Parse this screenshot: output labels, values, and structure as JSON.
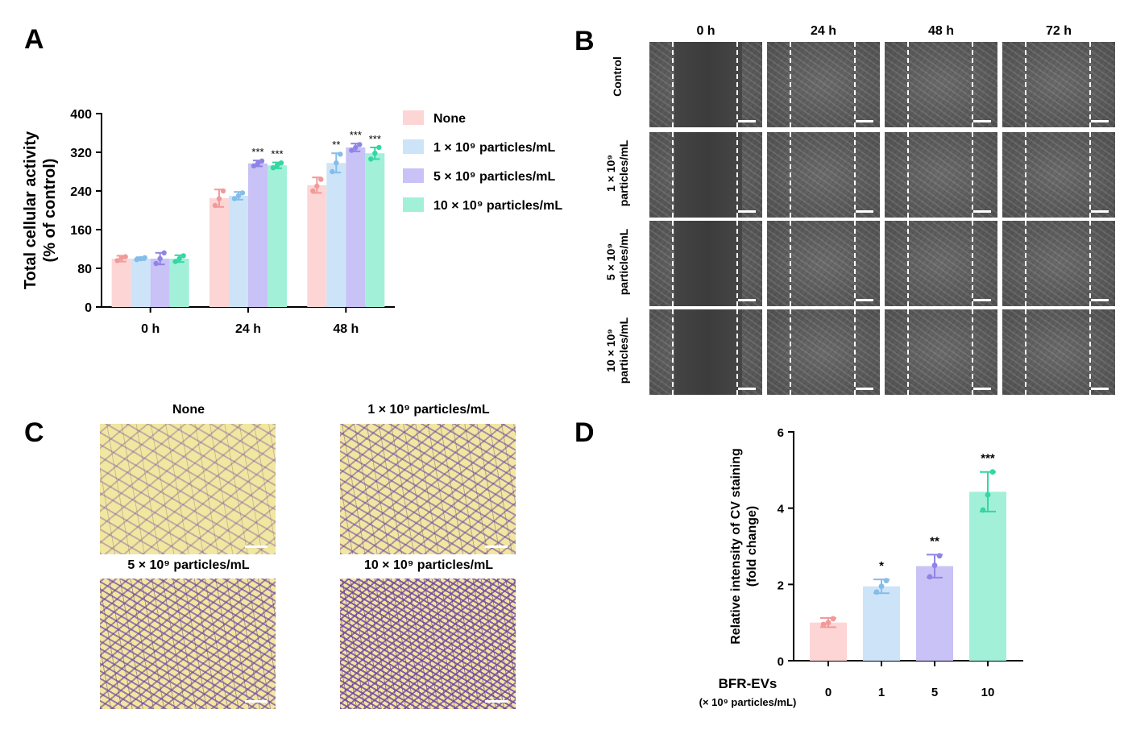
{
  "panels": {
    "a": "A",
    "b": "B",
    "c": "C",
    "d": "D"
  },
  "panel_b": {
    "columns": [
      "0 h",
      "24 h",
      "48 h",
      "72 h"
    ],
    "rows": [
      {
        "line1": "Control",
        "line2": ""
      },
      {
        "line1": "1 × 10⁹",
        "line2": "particles/mL"
      },
      {
        "line1": "5 × 10⁹",
        "line2": "particles/mL"
      },
      {
        "line1": "10 × 10⁹",
        "line2": "particles/mL"
      }
    ]
  },
  "panel_c": {
    "titles": [
      "None",
      "1 × 10⁹ particles/mL",
      "5 × 10⁹ particles/mL",
      "10 × 10⁹ particles/mL"
    ]
  },
  "chart_data": [
    {
      "type": "bar",
      "panel": "A",
      "ylabel_line1": "Total cellular activity",
      "ylabel_line2": "(% of control)",
      "categories": [
        "0 h",
        "24 h",
        "48 h"
      ],
      "ylim": [
        0,
        400
      ],
      "yticks": [
        0,
        80,
        160,
        240,
        320,
        400
      ],
      "legend_position": "right",
      "series": [
        {
          "name": "None",
          "color": "#fdd5d5",
          "point_color": "#f19a9a",
          "values": [
            100,
            225,
            252
          ],
          "errors": [
            6,
            18,
            16
          ],
          "points": [
            [
              96,
              102,
              104
            ],
            [
              210,
              224,
              240
            ],
            [
              240,
              250,
              264
            ]
          ],
          "sig": [
            "",
            "",
            ""
          ]
        },
        {
          "name": "1 × 10⁹ particles/mL",
          "color": "#cde4f8",
          "point_color": "#84bde8",
          "values": [
            100,
            230,
            298
          ],
          "errors": [
            3,
            8,
            20
          ],
          "points": [
            [
              98,
              100,
              102
            ],
            [
              224,
              230,
              236
            ],
            [
              280,
              298,
              316
            ]
          ],
          "sig": [
            "",
            "",
            "**"
          ]
        },
        {
          "name": "5 × 10⁹ particles/mL",
          "color": "#c8c2f6",
          "point_color": "#8f84e6",
          "values": [
            100,
            297,
            330
          ],
          "errors": [
            12,
            6,
            8
          ],
          "points": [
            [
              90,
              100,
              112
            ],
            [
              292,
              297,
              302
            ],
            [
              324,
              330,
              336
            ]
          ],
          "sig": [
            "",
            "***",
            "***"
          ]
        },
        {
          "name": "10 × 10⁹ particles/mL",
          "color": "#a3f0d9",
          "point_color": "#34d6a4",
          "values": [
            100,
            293,
            318
          ],
          "errors": [
            7,
            6,
            12
          ],
          "points": [
            [
              94,
              100,
              106
            ],
            [
              288,
              293,
              298
            ],
            [
              306,
              318,
              330
            ]
          ],
          "sig": [
            "",
            "***",
            "***"
          ]
        }
      ]
    },
    {
      "type": "bar",
      "panel": "D",
      "ylabel_line1": "Relative intensity of CV staining",
      "ylabel_line2": "(fold change)",
      "xlabel_line1": "BFR-EVs",
      "xlabel_line2": "(× 10⁹ particles/mL)",
      "categories": [
        "0",
        "1",
        "5",
        "10"
      ],
      "ylim": [
        0,
        6
      ],
      "yticks": [
        0,
        2,
        4,
        6
      ],
      "values": [
        1.0,
        1.95,
        2.48,
        4.43
      ],
      "errors": [
        0.12,
        0.18,
        0.3,
        0.52
      ],
      "points": [
        [
          0.95,
          1.0,
          1.1
        ],
        [
          1.8,
          1.95,
          2.1
        ],
        [
          2.2,
          2.5,
          2.75
        ],
        [
          3.95,
          4.35,
          4.95
        ]
      ],
      "sig": [
        "",
        "*",
        "**",
        "***"
      ],
      "colors": [
        "#fdd5d5",
        "#cde4f8",
        "#c8c2f6",
        "#a3f0d9"
      ],
      "point_colors": [
        "#f19a9a",
        "#84bde8",
        "#8f84e6",
        "#34d6a4"
      ]
    }
  ]
}
